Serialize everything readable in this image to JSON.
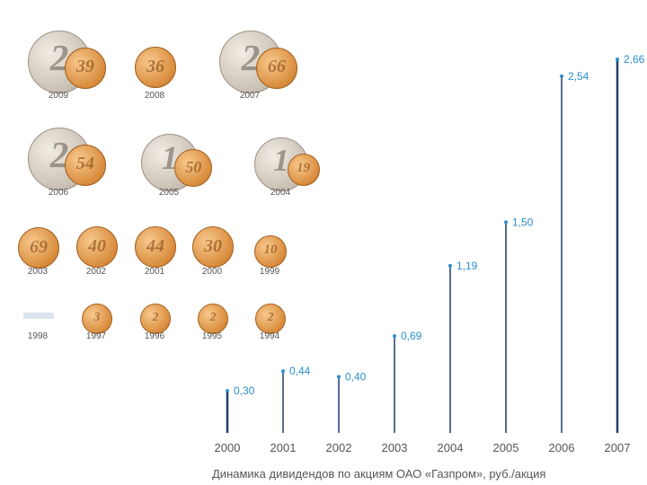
{
  "chart_data": {
    "type": "bar",
    "categories": [
      "2000",
      "2001",
      "2002",
      "2003",
      "2004",
      "2005",
      "2006",
      "2007"
    ],
    "values": [
      0.3,
      0.44,
      0.4,
      0.69,
      1.19,
      1.5,
      2.54,
      2.66
    ],
    "value_labels": [
      "0,30",
      "0,44",
      "0,40",
      "0,69",
      "1,19",
      "1,50",
      "2,54",
      "2,66"
    ],
    "title": "Динамика дивидендов по акциям ОАО «Газпром», руб./акция",
    "ylim": [
      0,
      2.8
    ],
    "colors": {
      "bar": "#1f3f66",
      "label": "#2b8fd0",
      "axis_text": "#555555"
    }
  },
  "coins": [
    {
      "year": "2009",
      "big": "2",
      "small": "39"
    },
    {
      "year": "2008",
      "small": "36"
    },
    {
      "year": "2007",
      "big": "2",
      "small": "66"
    },
    {
      "year": "2006",
      "big": "2",
      "small": "54"
    },
    {
      "year": "2005",
      "big": "1",
      "small": "50"
    },
    {
      "year": "2004",
      "big": "1",
      "small": "19"
    },
    {
      "year": "2003",
      "small": "69"
    },
    {
      "year": "2002",
      "small": "40"
    },
    {
      "year": "2001",
      "small": "44"
    },
    {
      "year": "2000",
      "small": "30"
    },
    {
      "year": "1999",
      "small": "10"
    },
    {
      "year": "1998"
    },
    {
      "year": "1997",
      "small": "3"
    },
    {
      "year": "1996",
      "small": "2"
    },
    {
      "year": "1995",
      "small": "2"
    },
    {
      "year": "1994",
      "small": "2"
    }
  ]
}
